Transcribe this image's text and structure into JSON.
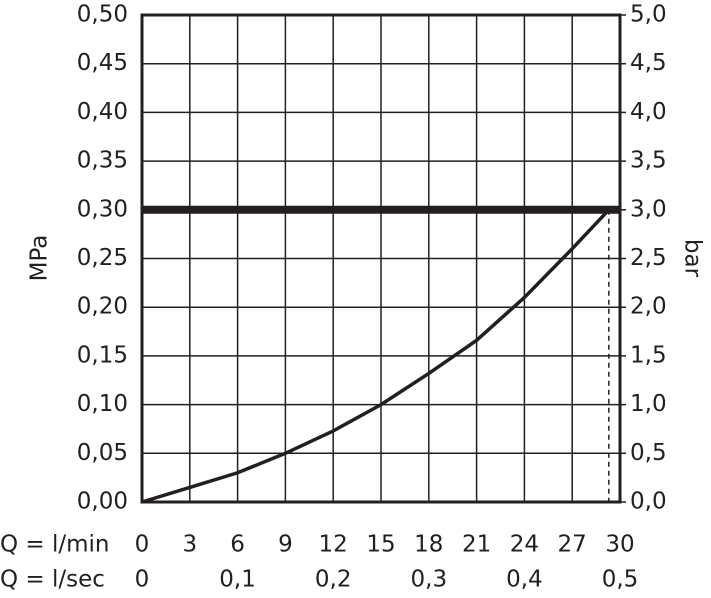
{
  "chart_data": {
    "type": "line",
    "y_label": "MPa",
    "y2_label": "bar",
    "x_label": "Q = l/min",
    "x2_label": "Q = l/sec",
    "xlim": [
      0,
      30
    ],
    "xticks": [
      0,
      3,
      6,
      9,
      12,
      15,
      18,
      21,
      24,
      27,
      30
    ],
    "x2lim": [
      0,
      0.5
    ],
    "x2ticks": [
      0,
      {
        "value": 0.1,
        "label": "0,1"
      },
      {
        "value": 0.2,
        "label": "0,2"
      },
      {
        "value": 0.3,
        "label": "0,3"
      },
      {
        "value": 0.4,
        "label": "0,4"
      },
      {
        "value": 0.5,
        "label": "0,5"
      }
    ],
    "ylim": [
      0,
      0.5
    ],
    "yticks": [
      {
        "value": 0,
        "label": "0,00"
      },
      {
        "value": 0.05,
        "label": "0,05"
      },
      {
        "value": 0.1,
        "label": "0,10"
      },
      {
        "value": 0.15,
        "label": "0,15"
      },
      {
        "value": 0.2,
        "label": "0,20"
      },
      {
        "value": 0.25,
        "label": "0,25"
      },
      {
        "value": 0.3,
        "label": "0,30"
      },
      {
        "value": 0.35,
        "label": "0,35"
      },
      {
        "value": 0.4,
        "label": "0,40"
      },
      {
        "value": 0.45,
        "label": "0,45"
      },
      {
        "value": 0.5,
        "label": "0,50"
      }
    ],
    "y2lim": [
      0,
      5
    ],
    "y2ticks": [
      {
        "value": 0,
        "label": "0,0"
      },
      {
        "value": 0.5,
        "label": "0,5"
      },
      {
        "value": 1,
        "label": "1,0"
      },
      {
        "value": 1.5,
        "label": "1,5"
      },
      {
        "value": 2,
        "label": "2,0"
      },
      {
        "value": 2.5,
        "label": "2,5"
      },
      {
        "value": 3,
        "label": "3,0"
      },
      {
        "value": 3.5,
        "label": "3,5"
      },
      {
        "value": 4,
        "label": "4,0"
      },
      {
        "value": 4.5,
        "label": "4,5"
      },
      {
        "value": 5,
        "label": "5,0"
      }
    ],
    "grid": true,
    "reference_y": 0.3,
    "reference_x": 29.3,
    "series": [
      {
        "color": "#231f20",
        "x": [
          0,
          3,
          6,
          9,
          12,
          15,
          18,
          21,
          24,
          27,
          29.3
        ],
        "values": [
          0,
          0.015,
          0.03,
          0.05,
          0.073,
          0.1,
          0.132,
          0.166,
          0.21,
          0.26,
          0.3
        ]
      }
    ]
  }
}
